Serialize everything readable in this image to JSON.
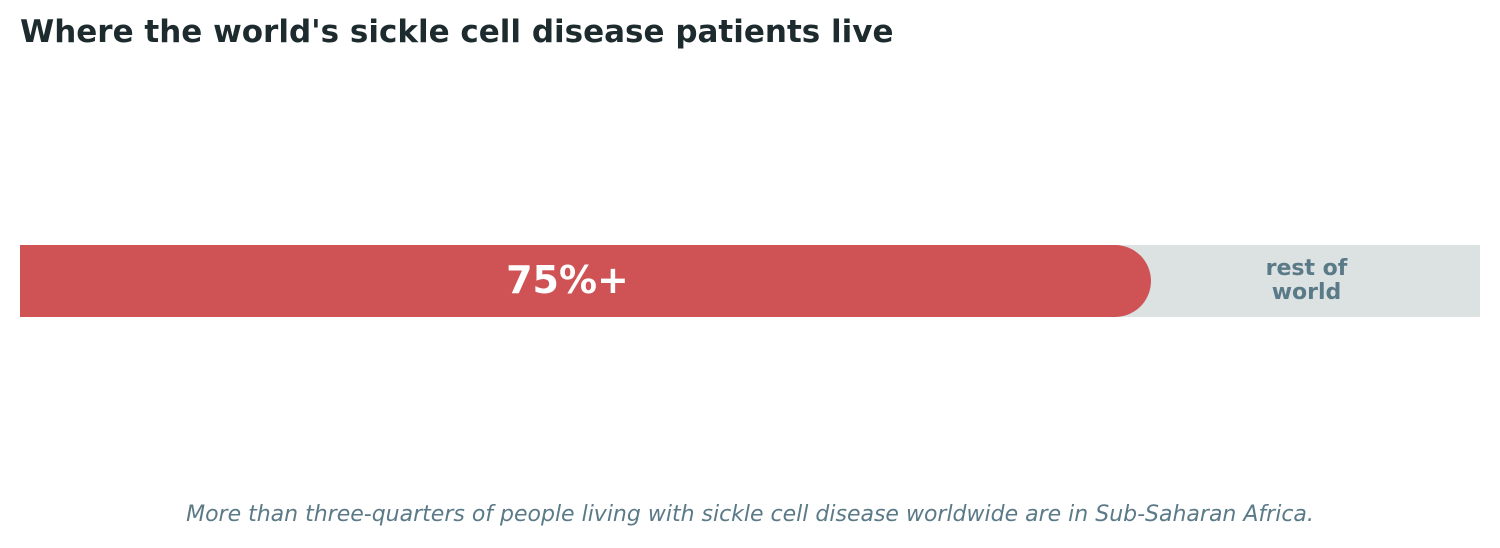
{
  "chart_data": {
    "type": "bar",
    "title": "Where the world's sickle cell disease patients live",
    "values": [
      75,
      25
    ],
    "value_labels": [
      "75%+",
      "rest of world"
    ],
    "colors": [
      "#cf5355",
      "#dbe2e1"
    ],
    "label_colors": [
      "#ffffff",
      "#5b7a88"
    ],
    "caption": "More than three-quarters of people living with sickle cell disease worldwide are in Sub-Saharan Africa."
  }
}
